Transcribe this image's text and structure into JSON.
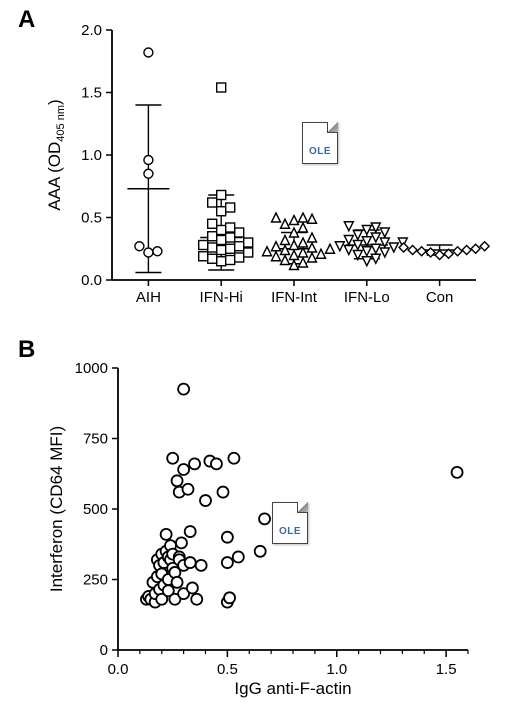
{
  "panelA": {
    "label": "A",
    "label_fontsize": 24,
    "type": "scatter-categorical",
    "background_color": "#ffffff",
    "axis_color": "#000000",
    "marker_stroke": "#000000",
    "marker_fill": "#ffffff",
    "marker_stroke_width": 1.4,
    "ylabel_main": "AAA (OD",
    "ylabel_sub": "405 nm",
    "ylabel_close": ")",
    "ylim": [
      0.0,
      2.0
    ],
    "yticks": [
      0.0,
      0.5,
      1.0,
      1.5,
      2.0
    ],
    "ytick_labels": [
      "0.0",
      "0.5",
      "1.0",
      "1.5",
      "2.0"
    ],
    "categories": [
      "AIH",
      "IFN-Hi",
      "IFN-Int",
      "IFN-Lo",
      "Con"
    ],
    "series": [
      {
        "category": "AIH",
        "marker": "circle",
        "points": [
          0.23,
          0.22,
          0.27,
          0.96,
          1.82,
          0.85
        ],
        "mean": 0.73,
        "whisker_low": 0.06,
        "whisker_high": 1.4
      },
      {
        "category": "IFN-Hi",
        "marker": "square",
        "points": [
          0.18,
          0.19,
          0.22,
          0.24,
          0.25,
          0.26,
          0.27,
          0.28,
          0.3,
          0.32,
          0.34,
          0.35,
          0.38,
          0.4,
          0.42,
          0.45,
          0.55,
          0.58,
          0.62,
          0.68,
          0.15,
          0.16,
          0.17,
          1.54
        ],
        "mean": 0.34,
        "whisker_low": 0.08,
        "whisker_high": 0.68
      },
      {
        "category": "IFN-Int",
        "marker": "triangle-up",
        "points": [
          0.12,
          0.14,
          0.16,
          0.18,
          0.19,
          0.2,
          0.21,
          0.22,
          0.23,
          0.24,
          0.25,
          0.26,
          0.27,
          0.28,
          0.3,
          0.32,
          0.34,
          0.38,
          0.42,
          0.45,
          0.48,
          0.5,
          0.5,
          0.49
        ],
        "mean": 0.25,
        "whisker_low": 0.13,
        "whisker_high": 0.38
      },
      {
        "category": "IFN-Lo",
        "marker": "triangle-down",
        "points": [
          0.15,
          0.17,
          0.2,
          0.22,
          0.23,
          0.24,
          0.25,
          0.26,
          0.27,
          0.28,
          0.3,
          0.32,
          0.34,
          0.36,
          0.38,
          0.4,
          0.42,
          0.43,
          0.3,
          0.31
        ],
        "mean": 0.28,
        "whisker_low": 0.17,
        "whisker_high": 0.4
      },
      {
        "category": "Con",
        "marker": "diamond",
        "points": [
          0.2,
          0.22,
          0.24,
          0.25,
          0.26,
          0.23,
          0.21,
          0.27,
          0.24,
          0.23
        ],
        "mean": 0.24,
        "whisker_low": 0.2,
        "whisker_high": 0.28
      }
    ],
    "errorbar_cap_width": 26,
    "mean_bar_width": 42,
    "ole_icon": {
      "x_offset": 262,
      "y_offset": 102
    }
  },
  "panelB": {
    "label": "B",
    "label_fontsize": 24,
    "type": "scatter",
    "background_color": "#ffffff",
    "axis_color": "#000000",
    "marker_stroke": "#000000",
    "marker_fill": "#ffffff",
    "marker_stroke_width": 1.8,
    "marker_radius": 5.5,
    "xlabel": "IgG anti-F-actin",
    "ylabel": "Interferon (CD64 MFI)",
    "xlim": [
      0.0,
      1.6
    ],
    "ylim": [
      0,
      1000
    ],
    "xticks": [
      0.0,
      0.5,
      1.0,
      1.5
    ],
    "xtick_labels": [
      "0.0",
      "0.5",
      "1.0",
      "1.5"
    ],
    "xminor": [
      0.1,
      0.2,
      0.3,
      0.4,
      0.6,
      0.7,
      0.8,
      0.9,
      1.1,
      1.2,
      1.3,
      1.4,
      1.6
    ],
    "yticks": [
      0,
      250,
      500,
      750,
      1000
    ],
    "ytick_labels": [
      "0",
      "250",
      "500",
      "750",
      "1000"
    ],
    "points": [
      [
        0.13,
        180
      ],
      [
        0.14,
        190
      ],
      [
        0.15,
        180
      ],
      [
        0.16,
        240
      ],
      [
        0.17,
        170
      ],
      [
        0.17,
        200
      ],
      [
        0.18,
        260
      ],
      [
        0.18,
        320
      ],
      [
        0.19,
        215
      ],
      [
        0.19,
        300
      ],
      [
        0.2,
        340
      ],
      [
        0.2,
        270
      ],
      [
        0.2,
        180
      ],
      [
        0.21,
        230
      ],
      [
        0.21,
        310
      ],
      [
        0.22,
        350
      ],
      [
        0.22,
        410
      ],
      [
        0.23,
        330
      ],
      [
        0.23,
        250
      ],
      [
        0.23,
        210
      ],
      [
        0.24,
        370
      ],
      [
        0.24,
        320
      ],
      [
        0.25,
        290
      ],
      [
        0.25,
        340
      ],
      [
        0.25,
        680
      ],
      [
        0.26,
        275
      ],
      [
        0.26,
        180
      ],
      [
        0.27,
        240
      ],
      [
        0.27,
        600
      ],
      [
        0.28,
        330
      ],
      [
        0.28,
        320
      ],
      [
        0.28,
        560
      ],
      [
        0.29,
        380
      ],
      [
        0.3,
        200
      ],
      [
        0.3,
        300
      ],
      [
        0.3,
        925
      ],
      [
        0.3,
        640
      ],
      [
        0.32,
        570
      ],
      [
        0.33,
        310
      ],
      [
        0.33,
        420
      ],
      [
        0.34,
        220
      ],
      [
        0.35,
        660
      ],
      [
        0.36,
        180
      ],
      [
        0.38,
        300
      ],
      [
        0.4,
        530
      ],
      [
        0.42,
        670
      ],
      [
        0.45,
        660
      ],
      [
        0.48,
        560
      ],
      [
        0.5,
        400
      ],
      [
        0.5,
        310
      ],
      [
        0.5,
        170
      ],
      [
        0.51,
        185
      ],
      [
        0.53,
        680
      ],
      [
        0.55,
        330
      ],
      [
        0.65,
        350
      ],
      [
        0.67,
        465
      ],
      [
        1.55,
        630
      ]
    ],
    "ole_icon": {
      "x_offset": 232,
      "y_offset": 142
    }
  }
}
